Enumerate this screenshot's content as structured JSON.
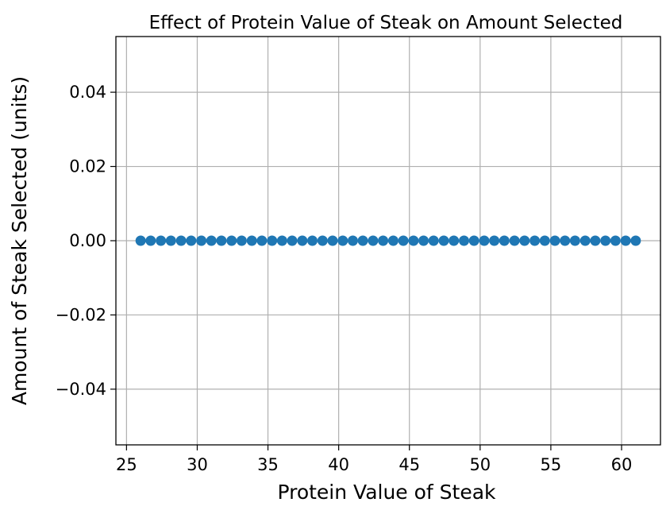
{
  "chart_data": {
    "type": "scatter",
    "title": "Effect of Protein Value of Steak on Amount Selected",
    "xlabel": "Protein Value of Steak",
    "ylabel": "Amount of Steak Selected (units)",
    "xlim": [
      24.25,
      62.75
    ],
    "ylim": [
      -0.055,
      0.055
    ],
    "x_ticks": [
      25,
      30,
      35,
      40,
      45,
      50,
      55,
      60
    ],
    "x_tick_labels": [
      "25",
      "30",
      "35",
      "40",
      "45",
      "50",
      "55",
      "60"
    ],
    "y_ticks": [
      -0.04,
      -0.02,
      0.0,
      0.02,
      0.04
    ],
    "y_tick_labels": [
      "−0.04",
      "−0.02",
      "0.00",
      "0.02",
      "0.04"
    ],
    "grid": true,
    "marker_color": "#1f77b4",
    "series": [
      {
        "x": [
          26.0,
          26.71,
          27.43,
          28.14,
          28.86,
          29.57,
          30.29,
          31.0,
          31.71,
          32.43,
          33.14,
          33.86,
          34.57,
          35.29,
          36.0,
          36.71,
          37.43,
          38.14,
          38.86,
          39.57,
          40.29,
          41.0,
          41.71,
          42.43,
          43.14,
          43.86,
          44.57,
          45.29,
          46.0,
          46.71,
          47.43,
          48.14,
          48.86,
          49.57,
          50.29,
          51.0,
          51.71,
          52.43,
          53.14,
          53.86,
          54.57,
          55.29,
          56.0,
          56.71,
          57.43,
          58.14,
          58.86,
          59.57,
          60.29,
          61.0
        ],
        "y": [
          0,
          0,
          0,
          0,
          0,
          0,
          0,
          0,
          0,
          0,
          0,
          0,
          0,
          0,
          0,
          0,
          0,
          0,
          0,
          0,
          0,
          0,
          0,
          0,
          0,
          0,
          0,
          0,
          0,
          0,
          0,
          0,
          0,
          0,
          0,
          0,
          0,
          0,
          0,
          0,
          0,
          0,
          0,
          0,
          0,
          0,
          0,
          0,
          0,
          0
        ]
      }
    ]
  }
}
